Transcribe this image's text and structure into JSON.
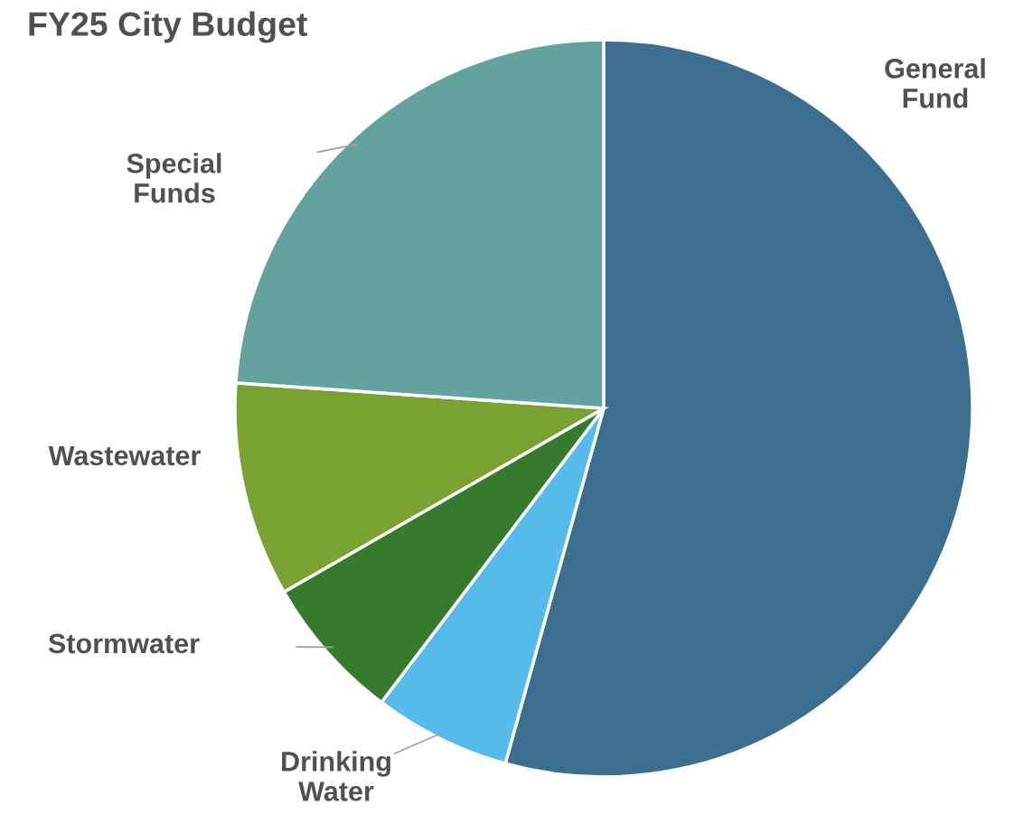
{
  "chart_data": {
    "type": "pie",
    "title": "FY25 City Budget",
    "categories": [
      "General Fund",
      "Drinking Water",
      "Stormwater",
      "Wastewater",
      "Special Funds"
    ],
    "values": [
      54.3,
      6.0,
      6.4,
      9.4,
      23.9
    ],
    "colors": [
      "#3b6e8f",
      "#56bbeb",
      "#367a2d",
      "#78a232",
      "#63a29e"
    ]
  }
}
